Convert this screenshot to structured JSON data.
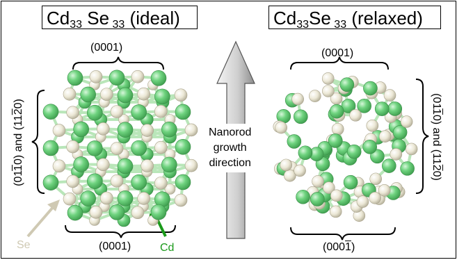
{
  "titles": {
    "ideal": {
      "cd": "Cd",
      "cd_n": "33",
      "se": " Se",
      "se_n": " 33",
      "tag": " (ideal)"
    },
    "relaxed": {
      "cd": "Cd",
      "cd_n": "33",
      "se": "Se",
      "se_n": " 33",
      "tag": " (relaxed)"
    }
  },
  "labels": {
    "ideal_top": "(0001)",
    "ideal_bottom": "(0001)",
    "relaxed_top": "(0001)",
    "relaxed_bottom_pre": "(000",
    "relaxed_bottom_bar": "1",
    "relaxed_bottom_post": ")",
    "ideal_side": {
      "a": "(01",
      "b": "1",
      "c": "0) and (11",
      "d": "2",
      "e": "0)"
    },
    "relaxed_side": {
      "a": "(01",
      "b": "1",
      "c": "0) and (11",
      "d": "2",
      "e": "0)"
    }
  },
  "growth": {
    "line1": "Nanorod",
    "line2": "growth",
    "line3": "direction"
  },
  "species": {
    "se": "Se",
    "cd": "Cd"
  },
  "colors": {
    "cd_atom": "#6fd37f",
    "se_atom": "#ece8d6",
    "bond": "#b9e6b9",
    "cd_arrow": "#1b9a1b",
    "se_arrow": "#cfc9b3",
    "growth_arrow": "#a8a8a8"
  }
}
